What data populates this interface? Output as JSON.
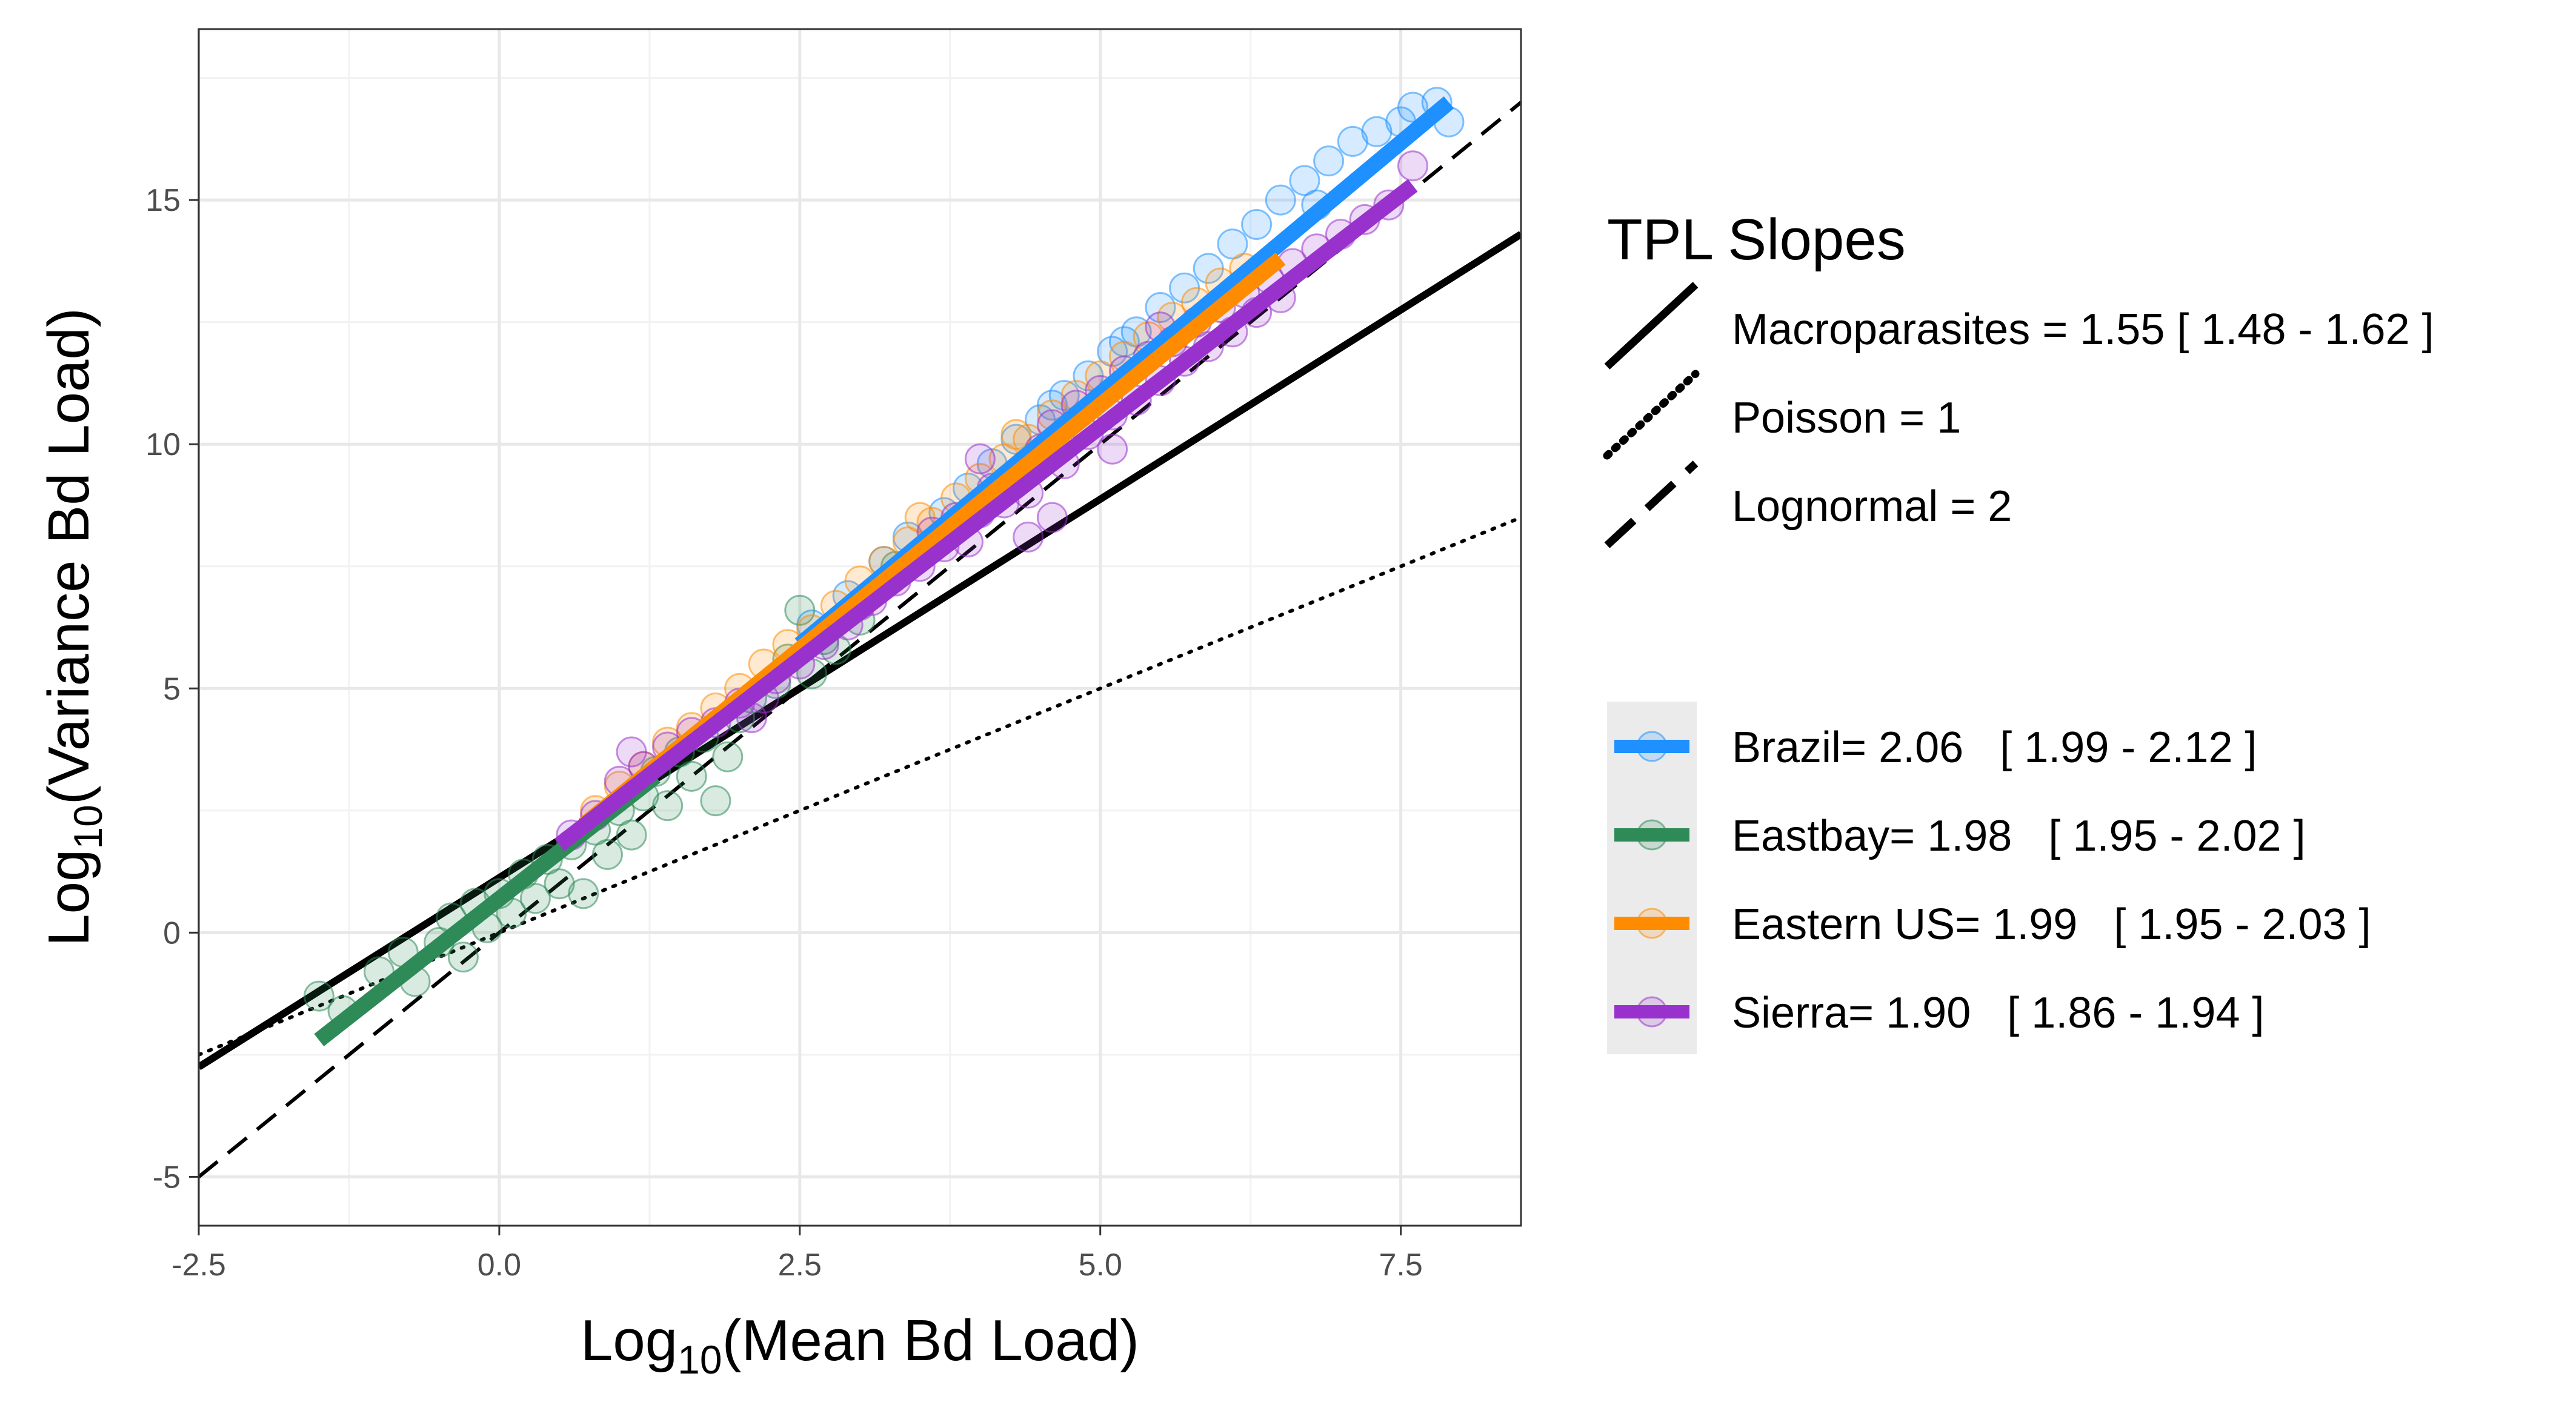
{
  "chart_data": {
    "type": "scatter",
    "xlabel": {
      "prefix": "Log",
      "sub": "10",
      "suffix": "(Mean Bd Load)"
    },
    "ylabel": {
      "prefix": "Log",
      "sub": "10",
      "suffix": "(Variance Bd Load)"
    },
    "xlim": [
      -2.5,
      8.5
    ],
    "ylim": [
      -6,
      18.5
    ],
    "xticks": [
      -2.5,
      0.0,
      2.5,
      5.0,
      7.5
    ],
    "xtick_labels": [
      "-2.5",
      "0.0",
      "2.5",
      "5.0",
      "7.5"
    ],
    "yticks": [
      -5,
      0,
      5,
      10,
      15
    ],
    "ytick_labels": [
      "-5",
      "0",
      "5",
      "10",
      "15"
    ],
    "grid": true,
    "legend_position": "right",
    "reference_legend": {
      "title": "TPL Slopes",
      "items": [
        {
          "label": "Macroparasites = 1.55 [ 1.48 - 1.62 ]",
          "style": "solid"
        },
        {
          "label": "Poisson = 1",
          "style": "dotted"
        },
        {
          "label": "Lognormal = 2",
          "style": "dashed"
        }
      ]
    },
    "reference_lines": [
      {
        "name": "Macroparasites",
        "style": "solid",
        "points": [
          [
            -2.5,
            -2.75
          ],
          [
            8.5,
            14.3
          ]
        ]
      },
      {
        "name": "Poisson",
        "style": "dotted",
        "points": [
          [
            -2.5,
            -2.5
          ],
          [
            8.5,
            8.5
          ]
        ]
      },
      {
        "name": "Lognormal",
        "style": "dashed",
        "points": [
          [
            -2.5,
            -5.0
          ],
          [
            8.5,
            17.0
          ]
        ]
      }
    ],
    "series": [
      {
        "name": "Brazil",
        "label": "Brazil= 2.06   [ 1.99 - 2.12 ]",
        "color": "#1e90ff",
        "fit": [
          [
            2.5,
            5.9
          ],
          [
            7.9,
            17.0
          ]
        ],
        "points": [
          [
            2.6,
            6.3
          ],
          [
            2.9,
            6.9
          ],
          [
            3.2,
            7.6
          ],
          [
            3.4,
            8.1
          ],
          [
            3.7,
            8.6
          ],
          [
            3.9,
            9.1
          ],
          [
            4.1,
            9.6
          ],
          [
            4.3,
            10.1
          ],
          [
            4.5,
            10.5
          ],
          [
            4.7,
            11.0
          ],
          [
            4.9,
            11.4
          ],
          [
            5.1,
            11.9
          ],
          [
            5.3,
            12.3
          ],
          [
            5.5,
            12.8
          ],
          [
            5.7,
            13.2
          ],
          [
            5.9,
            13.6
          ],
          [
            6.1,
            14.1
          ],
          [
            6.3,
            14.5
          ],
          [
            6.5,
            15.0
          ],
          [
            6.7,
            15.4
          ],
          [
            6.9,
            15.8
          ],
          [
            7.1,
            16.2
          ],
          [
            7.3,
            16.4
          ],
          [
            7.5,
            16.6
          ],
          [
            7.6,
            16.9
          ],
          [
            7.8,
            17.0
          ],
          [
            7.9,
            16.6
          ],
          [
            6.8,
            14.9
          ],
          [
            5.2,
            12.1
          ],
          [
            4.6,
            10.8
          ]
        ]
      },
      {
        "name": "Eastbay",
        "label": "Eastbay= 1.98   [ 1.95 - 2.02 ]",
        "color": "#2e8b57",
        "fit": [
          [
            -1.5,
            -2.2
          ],
          [
            1.3,
            3.2
          ]
        ],
        "points": [
          [
            -1.5,
            -1.3
          ],
          [
            -1.3,
            -1.6
          ],
          [
            -1.0,
            -0.8
          ],
          [
            -0.8,
            -0.4
          ],
          [
            -0.7,
            -1.0
          ],
          [
            -0.5,
            -0.2
          ],
          [
            -0.4,
            0.3
          ],
          [
            -0.3,
            -0.5
          ],
          [
            -0.2,
            0.6
          ],
          [
            -0.1,
            0.1
          ],
          [
            0.0,
            0.8
          ],
          [
            0.1,
            0.4
          ],
          [
            0.2,
            1.2
          ],
          [
            0.3,
            0.7
          ],
          [
            0.4,
            1.5
          ],
          [
            0.5,
            1.0
          ],
          [
            0.6,
            1.8
          ],
          [
            0.7,
            0.8
          ],
          [
            0.8,
            2.1
          ],
          [
            0.9,
            1.6
          ],
          [
            1.0,
            2.5
          ],
          [
            1.1,
            2.0
          ],
          [
            1.2,
            2.8
          ],
          [
            1.3,
            3.3
          ],
          [
            1.4,
            2.6
          ],
          [
            1.5,
            3.7
          ],
          [
            1.6,
            3.2
          ],
          [
            1.7,
            4.0
          ],
          [
            1.8,
            2.7
          ],
          [
            1.9,
            3.6
          ],
          [
            2.0,
            4.4
          ],
          [
            2.1,
            4.8
          ],
          [
            2.3,
            5.1
          ],
          [
            2.4,
            5.6
          ],
          [
            2.5,
            6.6
          ],
          [
            2.6,
            5.3
          ],
          [
            2.7,
            6.0
          ],
          [
            2.8,
            5.8
          ],
          [
            3.0,
            6.4
          ],
          [
            3.3,
            7.5
          ]
        ]
      },
      {
        "name": "Eastern US",
        "label": "Eastern US= 1.99   [ 1.95 - 2.03 ]",
        "color": "#ff8c00",
        "fit": [
          [
            0.7,
            2.2
          ],
          [
            6.5,
            13.8
          ]
        ],
        "points": [
          [
            0.8,
            2.5
          ],
          [
            1.0,
            3.0
          ],
          [
            1.2,
            3.4
          ],
          [
            1.4,
            3.9
          ],
          [
            1.6,
            4.2
          ],
          [
            1.8,
            4.6
          ],
          [
            2.0,
            5.0
          ],
          [
            2.2,
            5.5
          ],
          [
            2.4,
            5.9
          ],
          [
            2.6,
            6.2
          ],
          [
            2.8,
            6.7
          ],
          [
            3.0,
            7.2
          ],
          [
            3.2,
            7.6
          ],
          [
            3.4,
            8.0
          ],
          [
            3.6,
            8.4
          ],
          [
            3.8,
            8.9
          ],
          [
            4.0,
            9.3
          ],
          [
            4.2,
            9.7
          ],
          [
            4.4,
            10.1
          ],
          [
            4.6,
            10.6
          ],
          [
            4.8,
            11.0
          ],
          [
            5.0,
            11.4
          ],
          [
            5.2,
            11.8
          ],
          [
            5.4,
            12.2
          ],
          [
            5.6,
            12.6
          ],
          [
            5.8,
            12.9
          ],
          [
            6.0,
            13.3
          ],
          [
            6.2,
            13.6
          ],
          [
            3.5,
            8.5
          ],
          [
            4.3,
            10.2
          ]
        ]
      },
      {
        "name": "Sierra",
        "label": "Sierra= 1.90   [ 1.86 - 1.94 ]",
        "color": "#9932cc",
        "fit": [
          [
            0.5,
            1.8
          ],
          [
            7.6,
            15.3
          ]
        ],
        "points": [
          [
            0.6,
            2.0
          ],
          [
            0.8,
            2.4
          ],
          [
            1.0,
            3.1
          ],
          [
            1.2,
            3.4
          ],
          [
            1.4,
            3.8
          ],
          [
            1.6,
            4.1
          ],
          [
            1.8,
            4.3
          ],
          [
            2.0,
            4.7
          ],
          [
            2.1,
            4.4
          ],
          [
            2.3,
            5.2
          ],
          [
            2.5,
            5.5
          ],
          [
            2.7,
            5.9
          ],
          [
            2.9,
            6.3
          ],
          [
            3.1,
            6.8
          ],
          [
            3.3,
            7.2
          ],
          [
            3.5,
            7.5
          ],
          [
            3.7,
            7.9
          ],
          [
            3.8,
            8.5
          ],
          [
            4.0,
            8.6
          ],
          [
            4.1,
            9.1
          ],
          [
            4.2,
            8.8
          ],
          [
            4.3,
            9.4
          ],
          [
            4.4,
            9.0
          ],
          [
            4.5,
            9.9
          ],
          [
            4.6,
            10.4
          ],
          [
            4.7,
            9.6
          ],
          [
            4.8,
            10.8
          ],
          [
            4.9,
            10.2
          ],
          [
            5.0,
            11.1
          ],
          [
            5.1,
            10.6
          ],
          [
            5.2,
            11.5
          ],
          [
            5.3,
            10.9
          ],
          [
            5.4,
            11.8
          ],
          [
            5.5,
            11.3
          ],
          [
            5.6,
            12.1
          ],
          [
            5.7,
            11.7
          ],
          [
            5.8,
            12.5
          ],
          [
            5.9,
            12.0
          ],
          [
            6.0,
            12.8
          ],
          [
            6.1,
            12.3
          ],
          [
            6.2,
            13.1
          ],
          [
            6.3,
            12.7
          ],
          [
            6.4,
            13.4
          ],
          [
            6.5,
            13.0
          ],
          [
            6.6,
            13.7
          ],
          [
            6.8,
            14.0
          ],
          [
            7.0,
            14.3
          ],
          [
            7.2,
            14.6
          ],
          [
            7.4,
            14.9
          ],
          [
            7.6,
            15.7
          ],
          [
            3.9,
            8.0
          ],
          [
            4.4,
            8.1
          ],
          [
            4.6,
            8.5
          ],
          [
            5.1,
            9.9
          ],
          [
            2.2,
            4.8
          ],
          [
            1.1,
            3.7
          ],
          [
            3.0,
            6.7
          ],
          [
            3.6,
            8.2
          ],
          [
            5.5,
            12.4
          ],
          [
            4.0,
            9.7
          ]
        ]
      }
    ]
  }
}
